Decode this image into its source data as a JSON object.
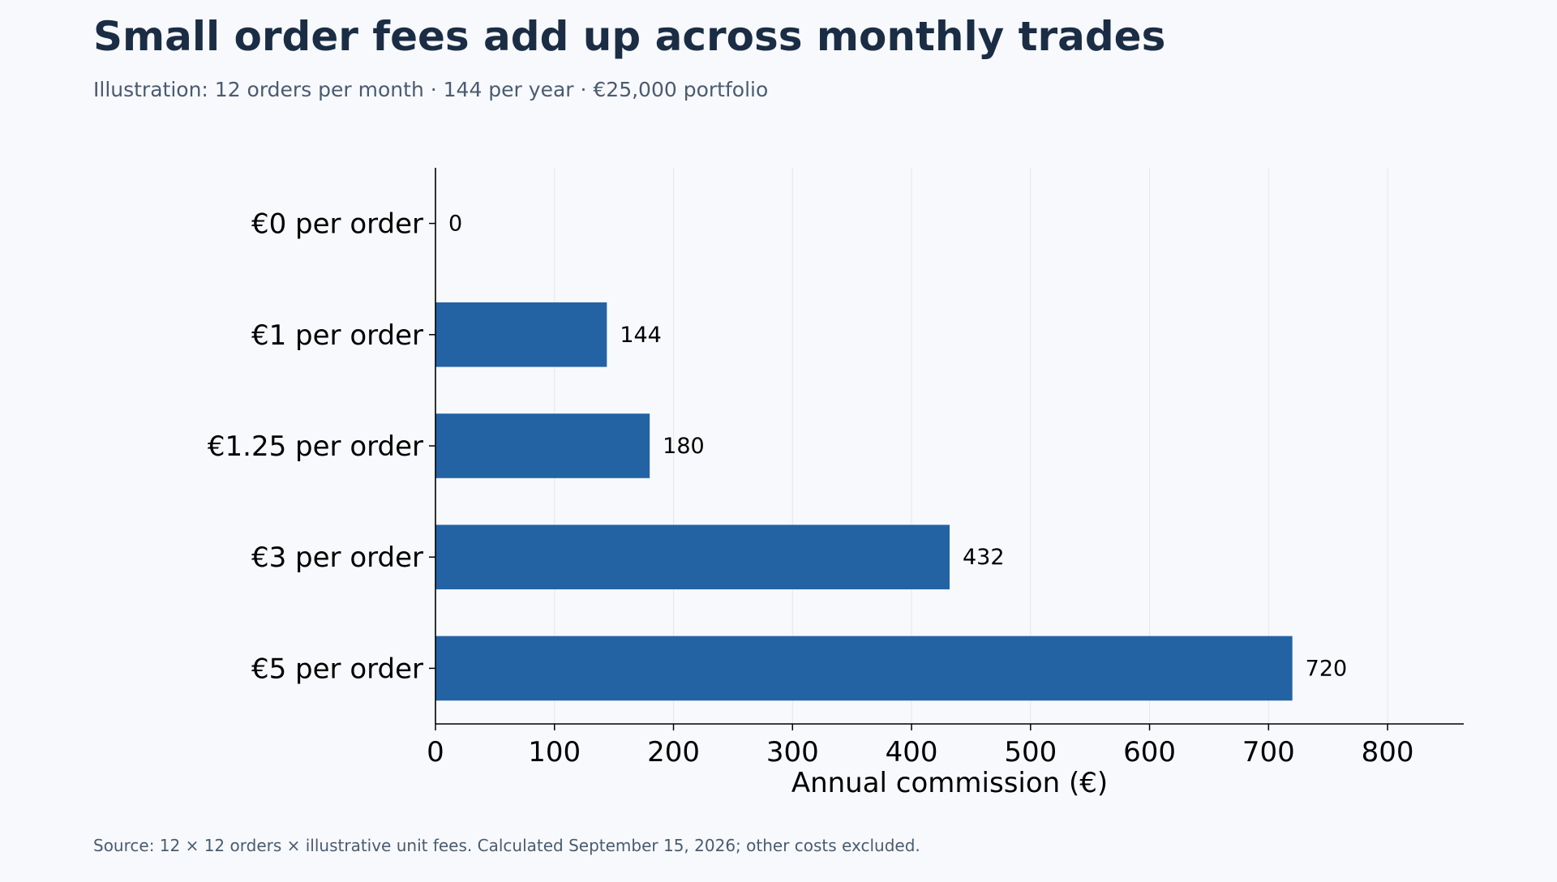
{
  "header": {
    "title": "Small order fees add up across monthly trades",
    "subtitle": "Illustration: 12 orders per month · 144 per year · €25,000 portfolio"
  },
  "footer": {
    "source": "Source: 12 × 12 orders × illustrative unit fees. Calculated September 15, 2026; other costs excluded."
  },
  "chart_data": {
    "type": "bar",
    "orientation": "horizontal",
    "categories": [
      "€0 per order",
      "€1 per order",
      "€1.25 per order",
      "€3 per order",
      "€5 per order"
    ],
    "values": [
      0,
      144,
      180,
      432,
      720
    ],
    "value_labels": [
      "0",
      "144",
      "180",
      "432",
      "720"
    ],
    "xlabel": "Annual commission (€)",
    "ylabel": "",
    "xlim": [
      0,
      864
    ],
    "xticks": [
      0,
      100,
      200,
      300,
      400,
      500,
      600,
      700,
      800
    ],
    "grid": "vertical",
    "colors": {
      "bar": "#2363a4",
      "grid": "#e5e7eb",
      "axis": "#000000"
    }
  }
}
